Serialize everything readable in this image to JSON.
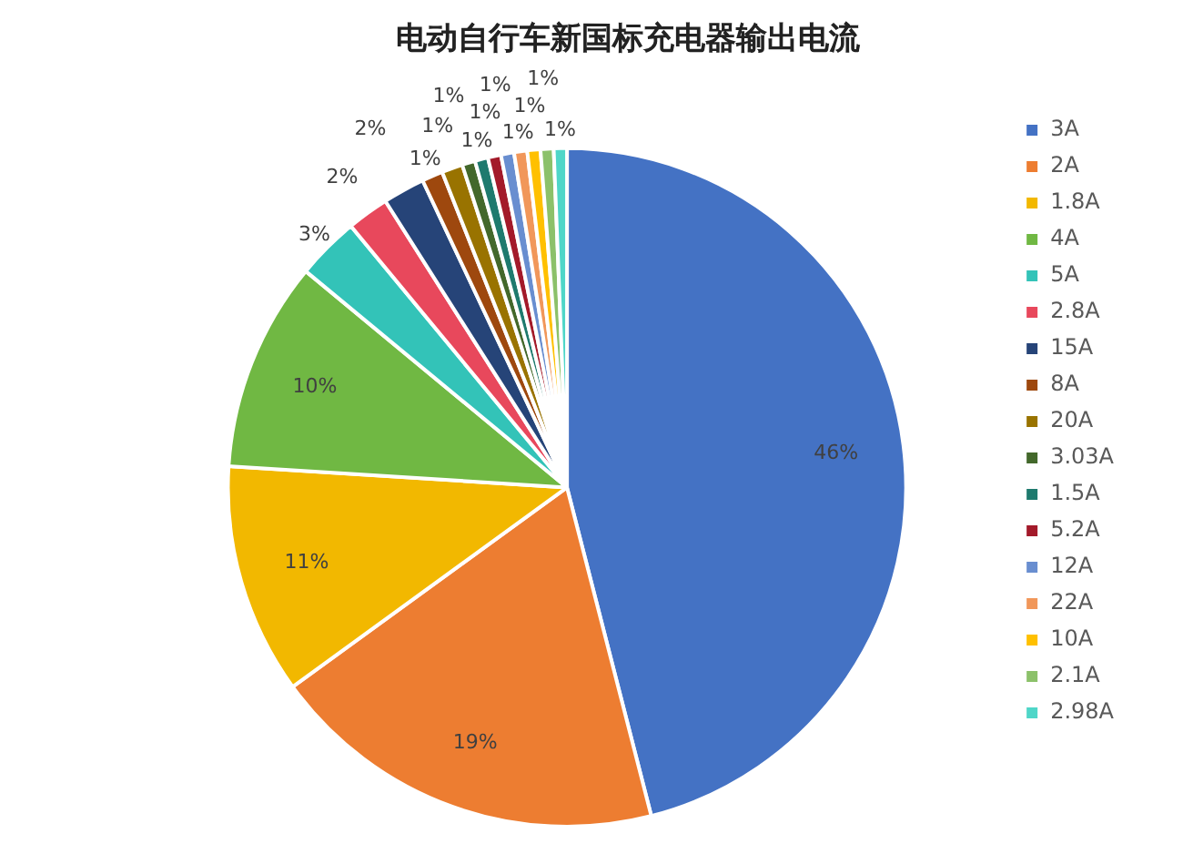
{
  "chart_data": {
    "type": "pie",
    "title": "电动自行车新国标充电器输出电流",
    "categories": [
      "3A",
      "2A",
      "1.8A",
      "4A",
      "5A",
      "2.8A",
      "15A",
      "8A",
      "20A",
      "3.03A",
      "1.5A",
      "5.2A",
      "12A",
      "22A",
      "10A",
      "2.1A",
      "2.98A"
    ],
    "values": [
      46,
      19,
      11,
      10,
      3,
      2,
      2,
      1,
      1,
      0.625,
      0.625,
      0.625,
      0.625,
      0.625,
      0.625,
      0.625,
      0.625
    ],
    "value_labels": [
      "46%",
      "19%",
      "11%",
      "10%",
      "3%",
      "2%",
      "2%",
      "1%",
      "1%",
      "1%",
      "1%",
      "1%",
      "1%",
      "1%",
      "1%",
      "1%",
      "1%"
    ],
    "colors": [
      "#4472c4",
      "#ed7d31",
      "#f2b800",
      "#70b843",
      "#33c3b8",
      "#e8485c",
      "#264478",
      "#9e480e",
      "#997300",
      "#43682b",
      "#1e7a6e",
      "#a31a2a",
      "#698ed0",
      "#f1975a",
      "#ffc000",
      "#8cc16a",
      "#4fd6c8"
    ],
    "legend": "right"
  }
}
